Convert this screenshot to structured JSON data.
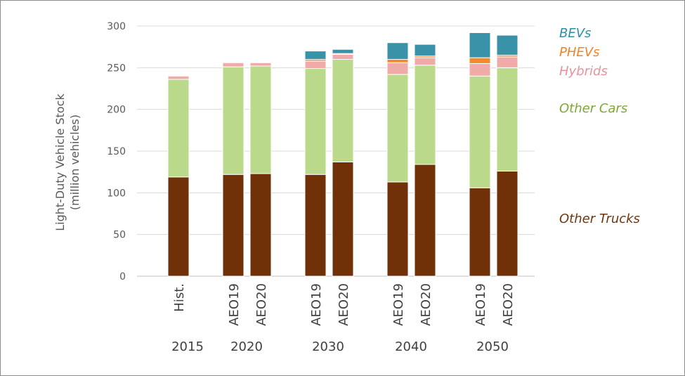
{
  "chart_data": {
    "type": "bar",
    "stacked": true,
    "ylabel": [
      "Light-Duty Vehicle Stock",
      "(million vehicles)"
    ],
    "xlabel": "",
    "ylim": [
      0,
      300
    ],
    "yticks": [
      0,
      50,
      100,
      150,
      200,
      250,
      300
    ],
    "grid": true,
    "legend_position": "right",
    "groups": [
      {
        "year": "2015",
        "bars": [
          "Hist."
        ]
      },
      {
        "year": "2020",
        "bars": [
          "AEO19",
          "AEO20"
        ]
      },
      {
        "year": "2030",
        "bars": [
          "AEO19",
          "AEO20"
        ]
      },
      {
        "year": "2040",
        "bars": [
          "AEO19",
          "AEO20"
        ]
      },
      {
        "year": "2050",
        "bars": [
          "AEO19",
          "AEO20"
        ]
      }
    ],
    "categories": [
      "Hist.",
      "AEO19",
      "AEO20",
      "AEO19",
      "AEO20",
      "AEO19",
      "AEO20",
      "AEO19",
      "AEO20"
    ],
    "series": [
      {
        "name": "Other Trucks",
        "color": "#703108",
        "values": [
          119,
          122,
          123,
          122,
          137,
          113,
          134,
          106,
          126
        ]
      },
      {
        "name": "Other Cars",
        "color": "#bbd98a",
        "values": [
          117,
          129,
          129,
          127,
          123,
          129,
          119,
          134,
          124
        ]
      },
      {
        "name": "Hybrids",
        "color": "#f0aaa8",
        "values": [
          4,
          5,
          4,
          9,
          6,
          14,
          9,
          15,
          13
        ]
      },
      {
        "name": "PHEVs",
        "color": "#f08a2a",
        "values": [
          0,
          0,
          0,
          2,
          1,
          4,
          2,
          7,
          2
        ]
      },
      {
        "name": "BEVs",
        "color": "#3a92a8",
        "values": [
          0,
          0,
          0,
          10,
          5,
          20,
          14,
          30,
          24
        ]
      }
    ],
    "legend": [
      {
        "name": "BEVs",
        "color": "#2d8fa5"
      },
      {
        "name": "PHEVs",
        "color": "#f58220"
      },
      {
        "name": "Hybrids",
        "color": "#e9929b"
      },
      {
        "name": "Other Cars",
        "color": "#7ba834"
      },
      {
        "name": "Other Trucks",
        "color": "#6e3510"
      }
    ]
  }
}
